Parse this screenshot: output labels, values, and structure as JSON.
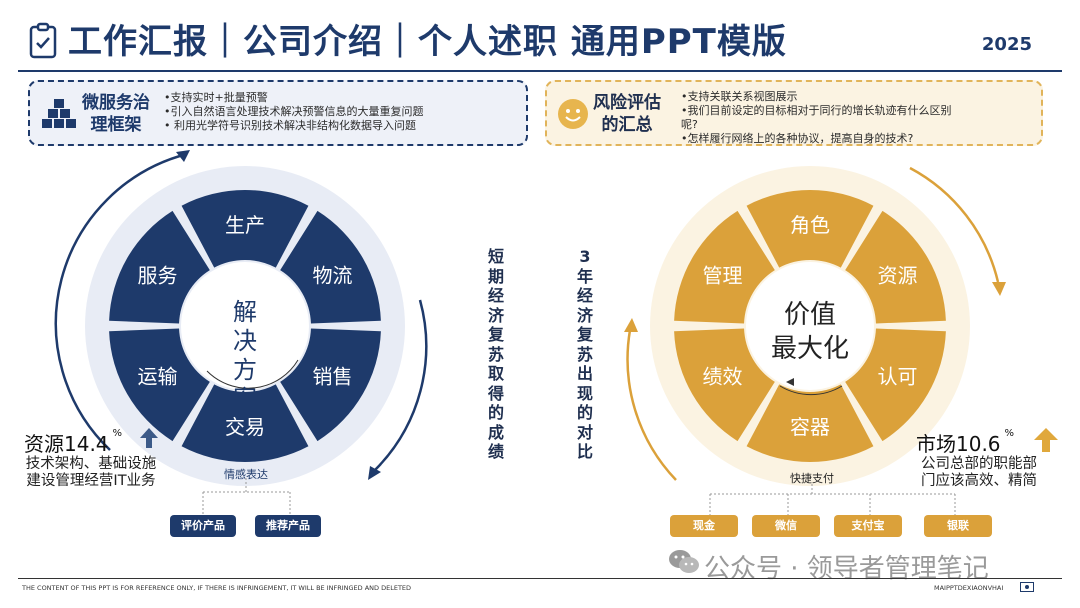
{
  "header": {
    "title": "工作汇报｜公司介绍｜个人述职 通用PPT模版",
    "year": "2025"
  },
  "left_box": {
    "title": "微服务治理框架",
    "bullets": [
      "•支持实时+批量预警",
      "•引入自然语言处理技术解决预警信息的大量重复问题",
      "• 利用光学符号识别技术解决非结构化数据导入问题"
    ]
  },
  "right_box": {
    "title": "风险评估的汇总",
    "bullets": [
      "•支持关联关系视图展示",
      "•我们目前设定的目标相对于同行的增长轨迹有什么区别",
      "呢?",
      "•怎样履行网络上的各种协议，提高自身的技术?"
    ]
  },
  "left_wheel": {
    "center": "解决方案",
    "segments": [
      "生产",
      "物流",
      "销售",
      "交易",
      "运输",
      "服务"
    ],
    "branch_label": "情感表达",
    "chips": [
      "评价产品",
      "推荐产品"
    ]
  },
  "right_wheel": {
    "center_line1": "价值",
    "center_line2": "最大化",
    "segments": [
      "角色",
      "资源",
      "认可",
      "容器",
      "绩效",
      "管理"
    ],
    "branch_label": "快捷支付",
    "chips": [
      "现金",
      "微信",
      "支付宝",
      "银联"
    ]
  },
  "middle": {
    "left_vertical": "短期经济复苏取得的成绩",
    "right_vertical": "3年经济复苏出现的对比"
  },
  "stats": {
    "left": {
      "label": "资源14.4",
      "unit": "%",
      "desc": "技术架构、基础设施建设管理经营IT业务"
    },
    "right": {
      "label": "市场10.6",
      "unit": "%",
      "desc": "公司总部的职能部门应该高效、精简"
    }
  },
  "footer": {
    "left": "THE CONTENT OF THIS PPT IS FOR REFERENCE ONLY, IF THERE IS INFRINGEMENT, IT WILL BE INFRINGED AND DELETED",
    "right": "MAIPPTDEXIAONVHAI",
    "watermark": "公众号 · 领导者管理笔记"
  },
  "colors": {
    "navy": "#1e3a6b",
    "gold": "#dba13a",
    "gold_light": "#fbf3e2",
    "navy_light": "#eef1f8"
  }
}
